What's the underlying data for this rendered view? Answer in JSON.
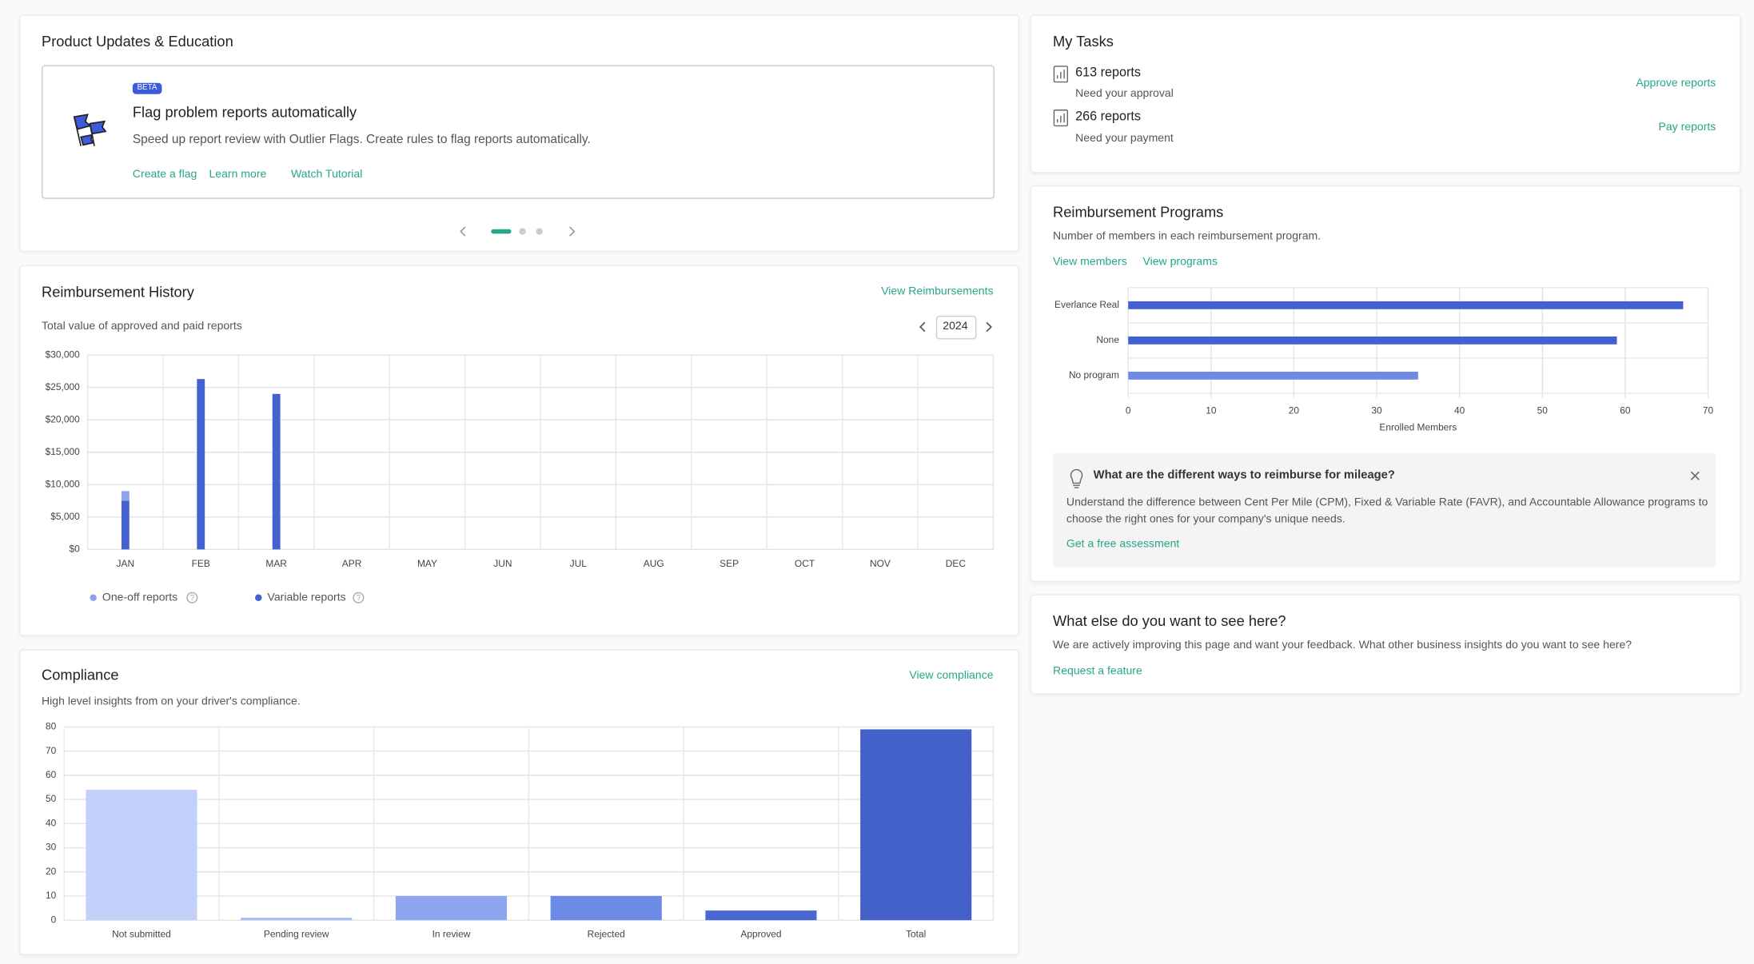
{
  "updates": {
    "title": "Product Updates & Education",
    "badge": "BETA",
    "heading": "Flag problem reports automatically",
    "description": "Speed up report review with Outlier Flags. Create rules to flag reports automatically.",
    "links": [
      "Create a flag",
      "Learn more",
      "Watch Tutorial"
    ]
  },
  "history": {
    "title": "Reimbursement History",
    "link": "View Reimbursements",
    "subtitle": "Total value of approved and paid reports",
    "year": "2024"
  },
  "compliance": {
    "title": "Compliance",
    "link": "View compliance",
    "subtitle": "High level insights from on your driver's compliance."
  },
  "tasks": {
    "title": "My Tasks",
    "items": [
      {
        "count": "613 reports",
        "note": "Need your approval",
        "action": "Approve reports"
      },
      {
        "count": "266 reports",
        "note": "Need your payment",
        "action": "Pay reports"
      }
    ]
  },
  "programs": {
    "title": "Reimbursement Programs",
    "subtitle": "Number of members in each reimbursement program.",
    "links": [
      "View members",
      "View programs"
    ],
    "tip": {
      "question": "What are the different ways to reimburse for mileage?",
      "body": "Understand the difference between Cent Per Mile (CPM), Fixed & Variable Rate (FAVR), and Accountable Allowance programs to choose the right ones for your company's unique needs.",
      "link": "Get a free assessment"
    }
  },
  "feedback": {
    "title": "What else do you want to see here?",
    "text": "We are actively improving this page and want your feedback. What other business insights do you want to see here?",
    "link": "Request a feature"
  },
  "chart_data": [
    {
      "type": "bar",
      "stacked": true,
      "categories": [
        "JAN",
        "FEB",
        "MAR",
        "APR",
        "MAY",
        "JUN",
        "JUL",
        "AUG",
        "SEP",
        "OCT",
        "NOV",
        "DEC"
      ],
      "series": [
        {
          "name": "One-off reports",
          "color": "#8fa3ea",
          "values": [
            1500,
            0,
            0,
            0,
            0,
            0,
            0,
            0,
            0,
            0,
            0,
            0
          ]
        },
        {
          "name": "Variable reports",
          "color": "#4361d0",
          "values": [
            7500,
            26300,
            24000,
            0,
            0,
            0,
            0,
            0,
            0,
            0,
            0,
            0
          ]
        }
      ],
      "ylim": [
        0,
        30000
      ],
      "yticks": [
        {
          "value": 0,
          "label": "$0"
        },
        {
          "value": 5000,
          "label": "$5,000"
        },
        {
          "value": 10000,
          "label": "$10,000"
        },
        {
          "value": 15000,
          "label": "$15,000"
        },
        {
          "value": 20000,
          "label": "$20,000"
        },
        {
          "value": 25000,
          "label": "$25,000"
        },
        {
          "value": 30000,
          "label": "$30,000"
        }
      ],
      "grid": true
    },
    {
      "type": "barh",
      "categories": [
        "Everlance Real",
        "None",
        "No program"
      ],
      "values": [
        67,
        59,
        35
      ],
      "colors": [
        "#4160d6",
        "#4160d6",
        "#6f89e6"
      ],
      "xlabel": "Enrolled Members",
      "xlim": [
        0,
        70
      ],
      "xticks": [
        0,
        10,
        20,
        30,
        40,
        50,
        60,
        70
      ],
      "grid": true
    },
    {
      "type": "bar",
      "categories": [
        "Not submitted",
        "Pending review",
        "In review",
        "Rejected",
        "Approved",
        "Total"
      ],
      "values": [
        54,
        1,
        10,
        10,
        4,
        79
      ],
      "colors": [
        "#c3d0fa",
        "#a9bdf5",
        "#8ea6f0",
        "#6c8be6",
        "#4a68d4",
        "#4361c9"
      ],
      "ylim": [
        0,
        80
      ],
      "yticks": [
        0,
        10,
        20,
        30,
        40,
        50,
        60,
        70,
        80
      ],
      "grid": true
    }
  ]
}
